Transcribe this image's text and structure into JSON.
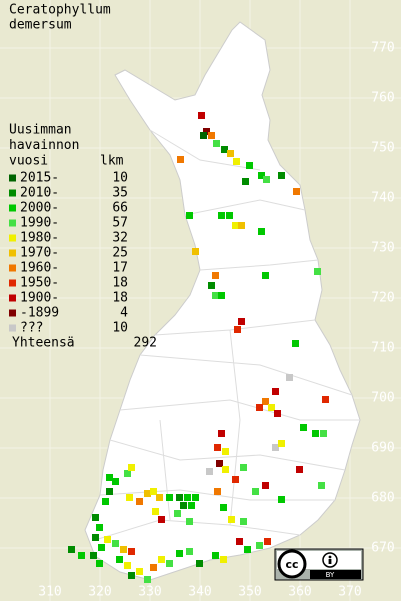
{
  "title": [
    "Ceratophyllum",
    "demersum"
  ],
  "legend": {
    "heading": [
      "Uusimman",
      "havainnon",
      "vuosi"
    ],
    "count_heading": "lkm",
    "classes": [
      {
        "label": "2015-",
        "count": 10,
        "color": "#006400"
      },
      {
        "label": "2010-",
        "count": 35,
        "color": "#008c00"
      },
      {
        "label": "2000-",
        "count": 66,
        "color": "#00c800"
      },
      {
        "label": "1990-",
        "count": 57,
        "color": "#44e044"
      },
      {
        "label": "1980-",
        "count": 32,
        "color": "#f0f000"
      },
      {
        "label": "1970-",
        "count": 25,
        "color": "#f0c000"
      },
      {
        "label": "1960-",
        "count": 17,
        "color": "#f07800"
      },
      {
        "label": "1950-",
        "count": 18,
        "color": "#e02800"
      },
      {
        "label": "1900-",
        "count": 18,
        "color": "#c00000"
      },
      {
        "label": "-1899",
        "count": 4,
        "color": "#800000"
      },
      {
        "label": "???",
        "count": 10,
        "color": "#c8c8c8"
      }
    ],
    "total_label": "Yhteensä",
    "total": 292
  },
  "grid": {
    "north": [
      770,
      760,
      750,
      740,
      730,
      720,
      710,
      700,
      690,
      680,
      670
    ],
    "east": [
      310,
      320,
      330,
      340,
      350,
      360,
      370
    ]
  },
  "license": {
    "icon": "cc",
    "by": "BY"
  }
}
